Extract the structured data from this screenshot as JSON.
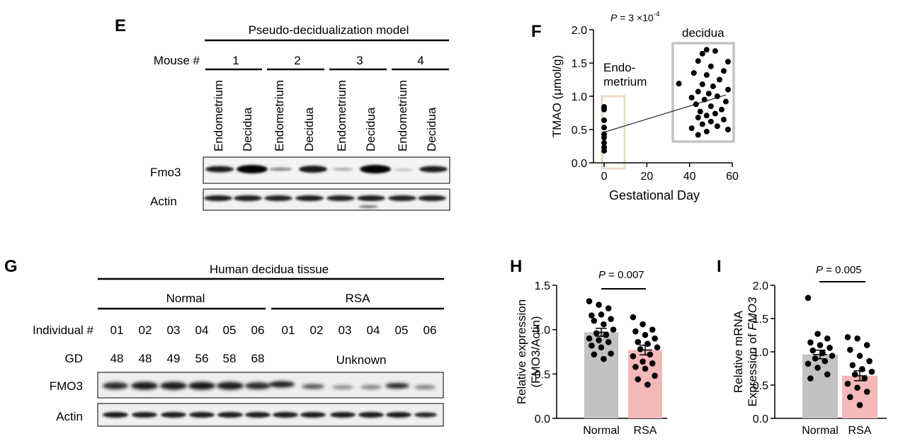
{
  "panelE": {
    "letter": "E",
    "title": "Pseudo-decidualization model",
    "mouse_label": "Mouse #",
    "mice": [
      "1",
      "2",
      "3",
      "4"
    ],
    "lanes": [
      "Endometrium",
      "Decidua",
      "Endometrium",
      "Decidua",
      "Endometrium",
      "Decidua",
      "Endometrium",
      "Decidua"
    ],
    "rows": [
      "Fmo3",
      "Actin"
    ]
  },
  "panelF": {
    "letter": "F",
    "pvalue_prefix": "P",
    "pvalue_rest": " = 3 ×10",
    "pvalue_exp": "-4",
    "group1_line1": "Endo-",
    "group1_line2": "metrium",
    "group2": "decidua",
    "colors": {
      "group1_box": "#eadcc4",
      "group2_box": "#c4c4c4"
    }
  },
  "panelG": {
    "letter": "G",
    "title": "Human decidua tissue",
    "groups": [
      "Normal",
      "RSA"
    ],
    "individual_label": "Individual #",
    "individuals": [
      "01",
      "02",
      "03",
      "04",
      "05",
      "06",
      "01",
      "02",
      "03",
      "04",
      "05",
      "06"
    ],
    "gd_label": "GD",
    "gd_values": [
      "48",
      "48",
      "49",
      "56",
      "58",
      "68"
    ],
    "gd_unknown": "Unknown",
    "rows": [
      "FMO3",
      "Actin"
    ]
  },
  "panelH": {
    "letter": "H",
    "pvalue_prefix": "P",
    "pvalue_rest": " = 0.007"
  },
  "panelI": {
    "letter": "I",
    "pvalue_prefix": "P",
    "pvalue_rest": " = 0.005"
  },
  "chart_data": [
    {
      "id": "F",
      "type": "scatter",
      "title": "",
      "xlabel": "Gestational Day",
      "ylabel": "TMAO (μmol/g)",
      "xlim": [
        -5,
        60
      ],
      "ylim": [
        0,
        2.0
      ],
      "xticks": [
        "0",
        "20",
        "40",
        "60"
      ],
      "yticks": [
        "0.0",
        "0.5",
        "1.0",
        "1.5",
        "2.0"
      ],
      "series": [
        {
          "name": "Endometrium",
          "points": [
            [
              0,
              0.84
            ],
            [
              0,
              0.8
            ],
            [
              0,
              0.64
            ],
            [
              0,
              0.53
            ],
            [
              0,
              0.43
            ],
            [
              0,
              0.38
            ],
            [
              0,
              0.3
            ],
            [
              0,
              0.23
            ],
            [
              0,
              0.18
            ]
          ]
        },
        {
          "name": "decidua",
          "points": [
            [
              48,
              1.7
            ],
            [
              52,
              1.68
            ],
            [
              46,
              1.64
            ],
            [
              44,
              1.53
            ],
            [
              58,
              1.52
            ],
            [
              50,
              1.45
            ],
            [
              56,
              1.38
            ],
            [
              42,
              1.35
            ],
            [
              48,
              1.32
            ],
            [
              54,
              1.25
            ],
            [
              35,
              1.19
            ],
            [
              46,
              1.18
            ],
            [
              51,
              1.15
            ],
            [
              58,
              1.1
            ],
            [
              44,
              1.07
            ],
            [
              49,
              1.04
            ],
            [
              53,
              1.0
            ],
            [
              41,
              0.98
            ],
            [
              47,
              0.95
            ],
            [
              57,
              0.92
            ],
            [
              43,
              0.88
            ],
            [
              50,
              0.85
            ],
            [
              55,
              0.8
            ],
            [
              45,
              0.77
            ],
            [
              52,
              0.74
            ],
            [
              48,
              0.71
            ],
            [
              44,
              0.68
            ],
            [
              56,
              0.65
            ],
            [
              50,
              0.62
            ],
            [
              46,
              0.58
            ],
            [
              53,
              0.55
            ],
            [
              41,
              0.52
            ],
            [
              58,
              0.5
            ],
            [
              48,
              0.47
            ],
            [
              44,
              0.42
            ]
          ]
        }
      ],
      "trendline": [
        [
          0,
          0.46
        ],
        [
          57,
          1.02
        ]
      ]
    },
    {
      "id": "H",
      "type": "bar",
      "xlabel": "",
      "ylabel": "Relative expression (FMO3/Actin)",
      "ylim": [
        0,
        1.5
      ],
      "yticks": [
        "0.0",
        "0.5",
        "1.0",
        "1.5"
      ],
      "categories": [
        "Normal",
        "RSA"
      ],
      "values": [
        0.97,
        0.77
      ],
      "errors": [
        0.045,
        0.055
      ],
      "colors": [
        "#c2c2c2",
        "#f4b8b8"
      ],
      "points": [
        [
          1.32,
          1.28,
          1.24,
          1.16,
          1.17,
          1.12,
          1.1,
          1.06,
          1.0,
          0.96,
          0.94,
          0.9,
          0.88,
          0.86,
          0.82,
          0.8,
          0.73,
          0.72,
          0.67
        ],
        [
          1.14,
          1.06,
          1.0,
          0.98,
          0.94,
          0.9,
          0.86,
          0.84,
          0.8,
          0.78,
          0.72,
          0.7,
          0.64,
          0.62,
          0.58,
          0.56,
          0.48,
          0.44,
          0.38
        ]
      ]
    },
    {
      "id": "I",
      "type": "bar",
      "xlabel": "",
      "ylabel": "Relative mRNA Expression of FMO3",
      "ylim": [
        0,
        2.0
      ],
      "yticks": [
        "0.0",
        "0.5",
        "1.0",
        "1.5",
        "2.0"
      ],
      "categories": [
        "Normal",
        "RSA"
      ],
      "values": [
        0.96,
        0.64
      ],
      "errors": [
        0.065,
        0.075
      ],
      "colors": [
        "#c2c2c2",
        "#f4b8b8"
      ],
      "points": [
        [
          1.81,
          1.27,
          1.2,
          1.14,
          1.1,
          1.06,
          1.02,
          0.98,
          0.94,
          0.9,
          0.86,
          0.82,
          0.76,
          0.66,
          0.6
        ],
        [
          1.22,
          1.2,
          1.1,
          1.03,
          0.94,
          0.86,
          0.8,
          0.74,
          0.7,
          0.66,
          0.6,
          0.52,
          0.46,
          0.4,
          0.32,
          0.2
        ]
      ]
    }
  ]
}
